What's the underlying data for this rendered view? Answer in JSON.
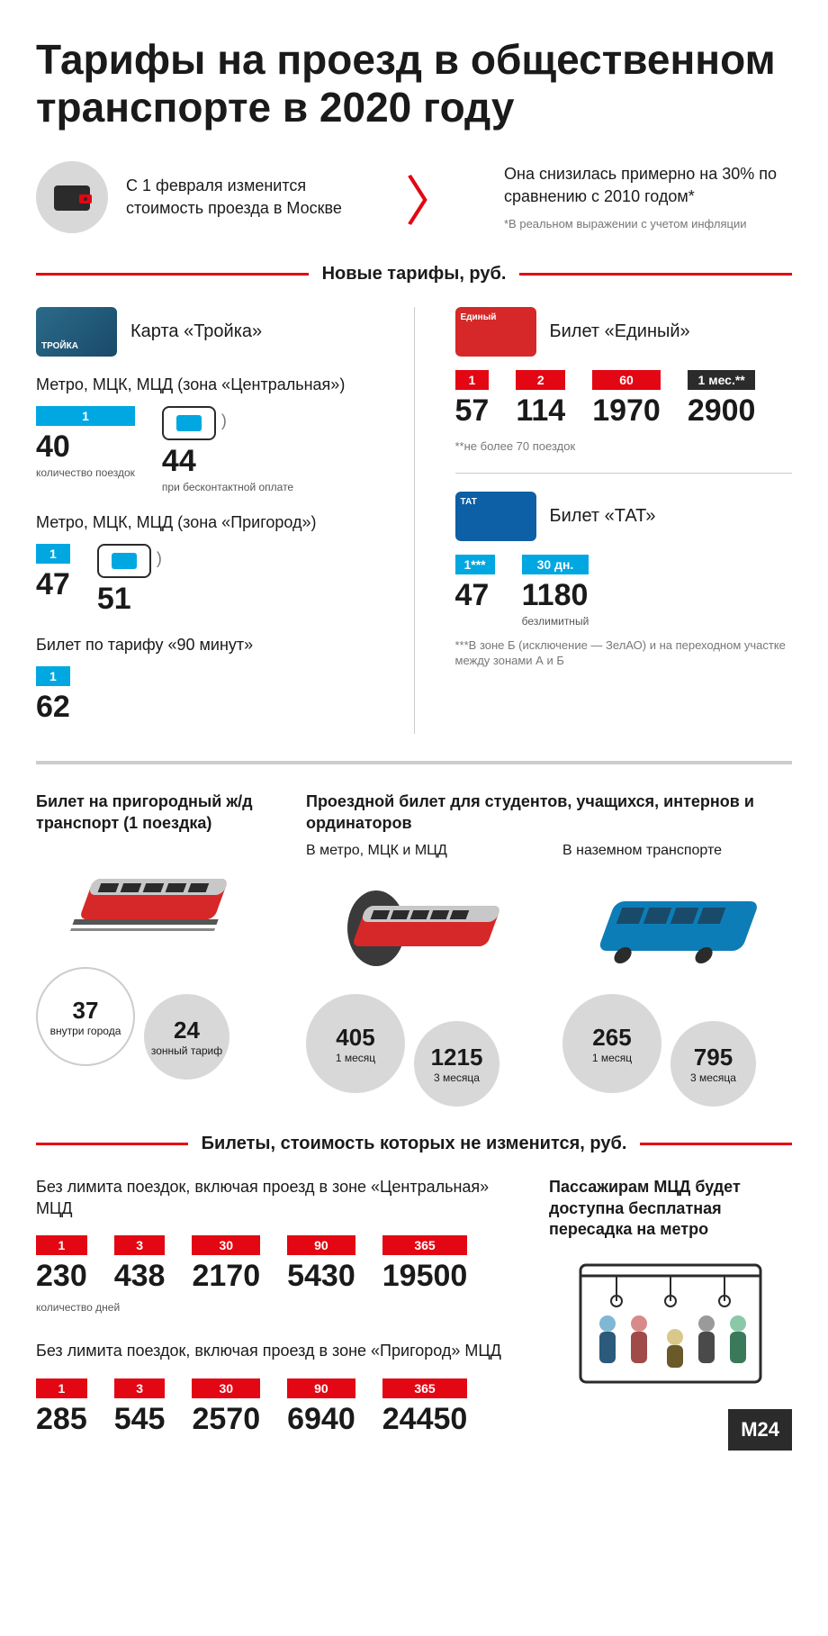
{
  "colors": {
    "accent_red": "#e30613",
    "accent_blue": "#00a7e1",
    "dark": "#2b2b2b",
    "gray_bg": "#d8d8d8",
    "gray_line": "#cccccc",
    "deep_blue": "#0d5fa6",
    "ticket_red": "#d62828"
  },
  "title": "Тарифы на проезд в общественном транспорте в 2020 году",
  "intro": {
    "left": "С 1 февраля изменится стоимость проезда в Москве",
    "right": "Она снизилась примерно на 30% по сравнению с 2010 годом*",
    "footnote": "*В реальном выражении с учетом инфляции"
  },
  "section_new": "Новые тарифы, руб.",
  "troika": {
    "card_label": "ТРОЙКА",
    "name": "Карта «Тройка»",
    "zone_central": "Метро, МЦК, МЦД (зона «Центральная»)",
    "zone_suburb": "Метро, МЦК, МЦД (зона «Пригород»)",
    "ninety": "Билет по тарифу «90 минут»",
    "badge_1": "1",
    "price_central": "40",
    "price_central_contactless": "44",
    "caption_trips": "количество поездок",
    "caption_contactless": "при бесконтактной оплате",
    "price_suburb": "47",
    "price_suburb_contactless": "51",
    "price_90": "62"
  },
  "ediny": {
    "card_label": "Единый",
    "name": "Билет «Единый»",
    "items": [
      {
        "badge": "1",
        "price": "57"
      },
      {
        "badge": "2",
        "price": "114"
      },
      {
        "badge": "60",
        "price": "1970"
      },
      {
        "badge": "1 мес.**",
        "price": "2900",
        "dark": true
      }
    ],
    "note": "**не более 70 поездок"
  },
  "tat": {
    "card_label": "ТАТ",
    "name": "Билет «ТАТ»",
    "items": [
      {
        "badge": "1***",
        "price": "47"
      },
      {
        "badge": "30 дн.",
        "price": "1180",
        "caption": "безлимитный"
      }
    ],
    "note": "***В зоне Б (исключение — ЗелАО) и на переходном участке между зонами А и Б"
  },
  "suburban": {
    "title": "Билет на пригородный ж/д транспорт (1 поездка)",
    "bubbles": [
      {
        "num": "37",
        "lbl": "внутри города",
        "style": "white"
      },
      {
        "num": "24",
        "lbl": "зонный тариф",
        "style": "gray",
        "offset": true
      }
    ]
  },
  "student": {
    "title": "Проездной билет для студентов, учащихся, интернов и ординаторов",
    "cols": [
      {
        "sub": "В метро, МЦК и МЦД",
        "bubbles": [
          {
            "num": "405",
            "lbl": "1 месяц",
            "style": "gray"
          },
          {
            "num": "1215",
            "lbl": "3 месяца",
            "style": "gray",
            "offset": true
          }
        ]
      },
      {
        "sub": "В наземном транспорте",
        "bubbles": [
          {
            "num": "265",
            "lbl": "1 месяц",
            "style": "gray"
          },
          {
            "num": "795",
            "lbl": "3 месяца",
            "style": "gray",
            "offset": true
          }
        ]
      }
    ]
  },
  "section_unchanged": "Билеты, стоимость которых не изменится, руб.",
  "unchanged": {
    "central_title": "Без лимита поездок, включая проезд в зоне «Центральная» МЦД",
    "suburb_title": "Без лимита поездок, включая проезд в зоне «Пригород» МЦД",
    "days_caption": "количество дней",
    "badges": [
      "1",
      "3",
      "30",
      "90",
      "365"
    ],
    "central_prices": [
      "230",
      "438",
      "2170",
      "5430",
      "19500"
    ],
    "suburb_prices": [
      "285",
      "545",
      "2570",
      "6940",
      "24450"
    ],
    "mcd_note": "Пассажирам МЦД будет доступна бесплатная пересадка на метро"
  },
  "logo": "M24"
}
